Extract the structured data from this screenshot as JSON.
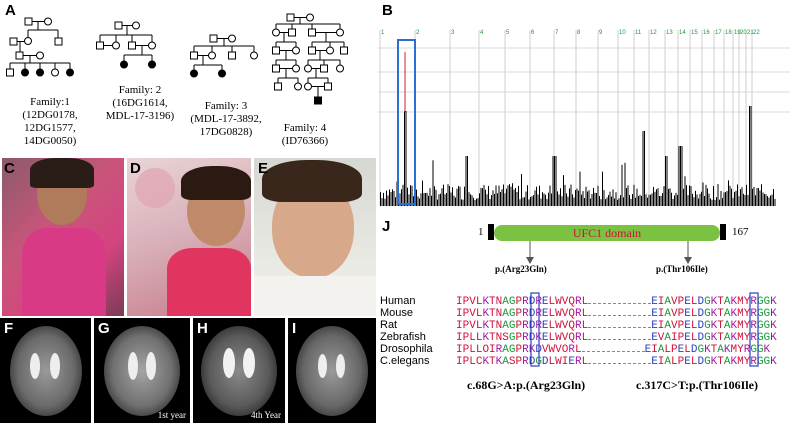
{
  "panels": {
    "A": "A",
    "B": "B",
    "C": "C",
    "D": "D",
    "E": "E",
    "F": "F",
    "G": "G",
    "H": "H",
    "I": "I",
    "J": "J"
  },
  "families": [
    {
      "title": "Family:1",
      "ids": [
        "(12DG0178,",
        "12DG1577,",
        "14DG0050)"
      ]
    },
    {
      "title": "Family: 2",
      "ids": [
        "(16DG1614,",
        "MDL-17-3196)"
      ]
    },
    {
      "title": "Family: 3",
      "ids": [
        "(MDL-17-3892,",
        "17DG0828)"
      ]
    },
    {
      "title": "Family: 4",
      "ids": [
        "(ID76366)"
      ]
    }
  ],
  "chromosome_axis": [
    "1",
    "2",
    "3",
    "4",
    "5",
    "6",
    "7",
    "8",
    "9",
    "10",
    "11",
    "12",
    "13",
    "14",
    "15",
    "16",
    "17",
    "18",
    "19",
    "20",
    "21",
    "22"
  ],
  "mri_labels": {
    "G": "1st year",
    "H": "4th Year"
  },
  "protein": {
    "domain": "UFC1 domain",
    "start": "1",
    "end": "167",
    "variant1": "p.(Arg23Gln)",
    "variant2": "p.(Thr106Ile)"
  },
  "alignment": [
    {
      "species": "Human",
      "left": "IPVLKTNAGPRDRELWVQRL",
      "right": "EIAVPELDGKTAKMYRGGK"
    },
    {
      "species": "Mouse",
      "left": "IPVLKTNAGPRDRELWVQRL",
      "right": "EIAVPELDGKTAKMYRGGK"
    },
    {
      "species": "Rat",
      "left": "IPVLKTNAGPRDRELWVQRL",
      "right": "EIAVPELDGKTAKMYRGGK"
    },
    {
      "species": "Zebrafish",
      "left": "IPLLKTNSGPRDKELWVQRL",
      "right": "EVAIPELDGKTAKMYRGGK"
    },
    {
      "species": "Drosophila",
      "left": "IPLLOIRAGPRKDVWVORL",
      "right": "EIALPELDGKTAKMYRGGK"
    },
    {
      "species": "C.elegans",
      "left": "IPLCKTKASPRDGDLWIERL",
      "right": "EIALPELDGKTAKMYRGGK"
    }
  ],
  "dna_variants": {
    "v1": "c.68G>A:p.(Arg23Gln)",
    "v2": "c.317C>T:p.(Thr106Ile)"
  },
  "colors": {
    "domain_fill": "#7cc242",
    "domain_text": "#d0103a",
    "highlight_box": "#2b3fbf"
  }
}
